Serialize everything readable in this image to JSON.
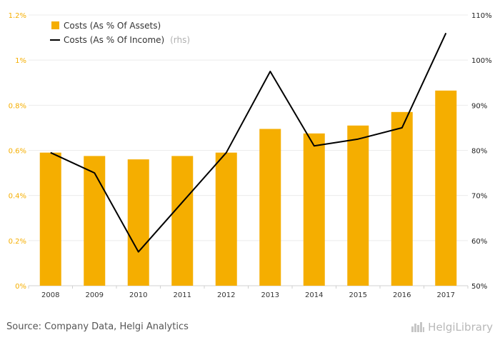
{
  "chart_data": {
    "type": "bar+line",
    "categories": [
      "2008",
      "2009",
      "2010",
      "2011",
      "2012",
      "2013",
      "2014",
      "2015",
      "2016",
      "2017"
    ],
    "series": [
      {
        "name": "Costs (As % Of Assets)",
        "type": "bar",
        "axis": "left",
        "color": "#f5ae00",
        "values": [
          0.59,
          0.575,
          0.56,
          0.575,
          0.59,
          0.695,
          0.675,
          0.71,
          0.77,
          0.865
        ]
      },
      {
        "name": "Costs (As % Of Income)",
        "legend_suffix": "(rhs)",
        "type": "line",
        "axis": "right",
        "color": "#000000",
        "values": [
          79.5,
          75,
          57.5,
          68.5,
          79.5,
          97.5,
          81,
          82.5,
          85,
          106
        ]
      }
    ],
    "y_left": {
      "min": 0,
      "max": 1.2,
      "ticks": [
        "0%",
        "0.2%",
        "0.4%",
        "0.6%",
        "0.8%",
        "1%",
        "1.2%"
      ]
    },
    "y_right": {
      "min": 50,
      "max": 110,
      "ticks": [
        "50%",
        "60%",
        "70%",
        "80%",
        "90%",
        "100%",
        "110%"
      ]
    },
    "grid": true,
    "legend_position": "top-left"
  },
  "footer": {
    "source": "Source: Company Data, Helgi Analytics",
    "logo_text": "HelgiLibrary",
    "logo_icon": "city-skyline-icon"
  }
}
